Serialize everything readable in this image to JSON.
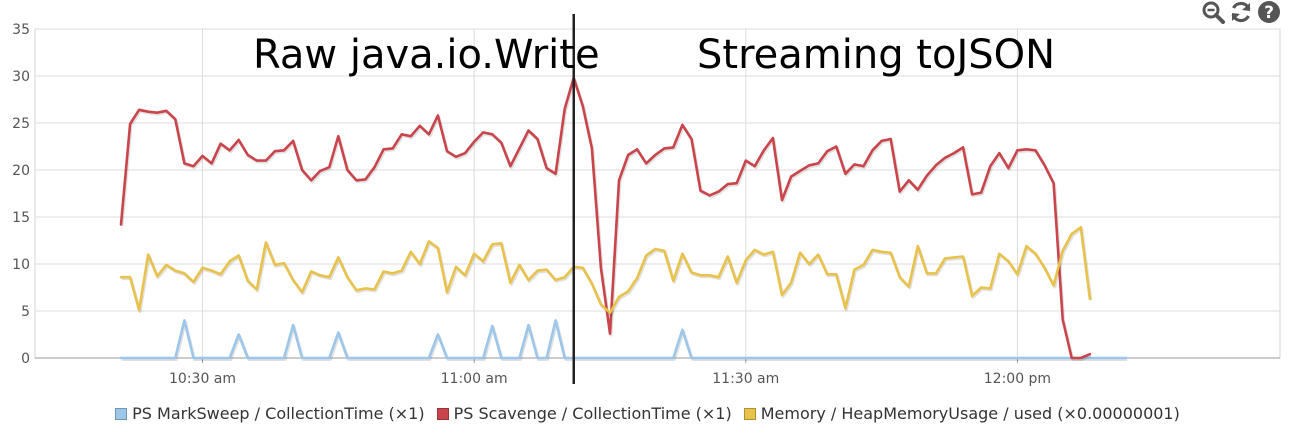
{
  "toolbar": {
    "zoom_out_icon": "zoom-out-icon",
    "refresh_icon": "refresh-icon",
    "help_icon": "help-icon",
    "icon_color": "#555555"
  },
  "annotations": {
    "left": "Raw java.io.Write",
    "right": "Streaming toJSON"
  },
  "chart_data": {
    "type": "line",
    "grid": true,
    "legend_position": "bottom",
    "ylim": [
      0,
      35
    ],
    "yticks": [
      0,
      5,
      10,
      15,
      20,
      25,
      30,
      35
    ],
    "xlim": [
      "10:11:30",
      "12:29:00"
    ],
    "xticks": [
      {
        "time": "10:30:00",
        "label": "10:30 am"
      },
      {
        "time": "11:00:00",
        "label": "11:00 am"
      },
      {
        "time": "11:30:00",
        "label": "11:30 am"
      },
      {
        "time": "12:00:00",
        "label": "12:00 pm"
      }
    ],
    "divider_time": "11:11:00",
    "x_start": "10:21:00",
    "x_step_seconds": 60,
    "series": [
      {
        "name": "PS MarkSweep / CollectionTime (×1)",
        "color": "#9cc6ea",
        "values": [
          0,
          0,
          0,
          0,
          0,
          0,
          0,
          4,
          0,
          0,
          0,
          0,
          0,
          2.5,
          0,
          0,
          0,
          0,
          0,
          3.5,
          0,
          0,
          0,
          0,
          2.7,
          0,
          0,
          0,
          0,
          0,
          0,
          0,
          0,
          0,
          0,
          2.5,
          0,
          0,
          0,
          0,
          0,
          3.4,
          0,
          0,
          0,
          3.5,
          0,
          0,
          4,
          0,
          0,
          0,
          0,
          0,
          0,
          0,
          0,
          0,
          0,
          0,
          0,
          0,
          3,
          0,
          0,
          0,
          0,
          0,
          0,
          0,
          0,
          0,
          0,
          0,
          0,
          0,
          0,
          0,
          0,
          0,
          0,
          0,
          0,
          0,
          0,
          0,
          0,
          0,
          0,
          0,
          0,
          0,
          0,
          0,
          0,
          0,
          0,
          0,
          0,
          0,
          0,
          0,
          0,
          0,
          0,
          0,
          0,
          0,
          0,
          0,
          0,
          0
        ]
      },
      {
        "name": "PS Scavenge / CollectionTime (×1)",
        "color": "#c9444b",
        "values": [
          14.2,
          24.9,
          26.4,
          26.2,
          26.1,
          26.3,
          25.4,
          20.7,
          20.4,
          21.5,
          20.7,
          22.8,
          22.1,
          23.2,
          21.6,
          21,
          21,
          22,
          22.1,
          23.1,
          20,
          18.9,
          19.9,
          20.3,
          23.6,
          20,
          18.9,
          19,
          20.3,
          22.2,
          22.3,
          23.8,
          23.6,
          24.7,
          23.8,
          25.8,
          22,
          21.4,
          21.8,
          23,
          24,
          23.8,
          22.9,
          20.4,
          22.3,
          24.2,
          23.3,
          20.2,
          19.6,
          26.5,
          29.8,
          26.8,
          22.3,
          9.6,
          2.6,
          18.9,
          21.6,
          22.2,
          20.7,
          21.6,
          22.3,
          22.4,
          24.8,
          23.3,
          17.8,
          17.3,
          17.7,
          18.5,
          18.6,
          21,
          20.4,
          22.1,
          23.4,
          16.8,
          19.3,
          19.9,
          20.5,
          20.7,
          22,
          22.5,
          19.6,
          20.6,
          20.4,
          22.1,
          23.1,
          23.3,
          17.7,
          18.9,
          17.9,
          19.4,
          20.5,
          21.3,
          21.8,
          22.4,
          17.4,
          17.6,
          20.4,
          21.8,
          20.2,
          22.1,
          22.2,
          22.1,
          20.5,
          18.6,
          4.1,
          0,
          0,
          0.4
        ]
      },
      {
        "name": "Memory / HeapMemoryUsage / used (×0.00000001)",
        "color": "#e8c24a",
        "values": [
          8.6,
          8.6,
          5.1,
          11,
          8.7,
          9.9,
          9.3,
          9,
          8.1,
          9.6,
          9.3,
          8.9,
          10.3,
          10.9,
          8.2,
          7.3,
          12.3,
          9.9,
          10.1,
          8.3,
          7,
          9.2,
          8.8,
          8.6,
          10.7,
          8.6,
          7.2,
          7.4,
          7.3,
          9.2,
          9,
          9.3,
          11.3,
          10,
          12.4,
          11.7,
          7,
          9.7,
          8.8,
          11.1,
          10.3,
          12.1,
          12.2,
          8,
          9.9,
          8.3,
          9.3,
          9.4,
          8.3,
          8.6,
          9.7,
          9.6,
          7.9,
          5.7,
          4.8,
          6.5,
          7.1,
          8.5,
          10.9,
          11.6,
          11.4,
          8.2,
          11.1,
          9.1,
          8.8,
          8.8,
          8.6,
          10.8,
          8,
          10.4,
          11.5,
          11,
          11.3,
          6.7,
          8,
          11.2,
          10,
          11,
          8.9,
          8.9,
          5.3,
          9.4,
          9.9,
          11.5,
          11.3,
          11.2,
          8.6,
          7.6,
          11.9,
          9,
          9,
          10.6,
          10.7,
          10.8,
          6.6,
          7.5,
          7.4,
          11.1,
          10.3,
          8.9,
          11.9,
          11.1,
          9.6,
          7.7,
          11.4,
          13.2,
          13.9,
          6.3
        ]
      }
    ]
  }
}
